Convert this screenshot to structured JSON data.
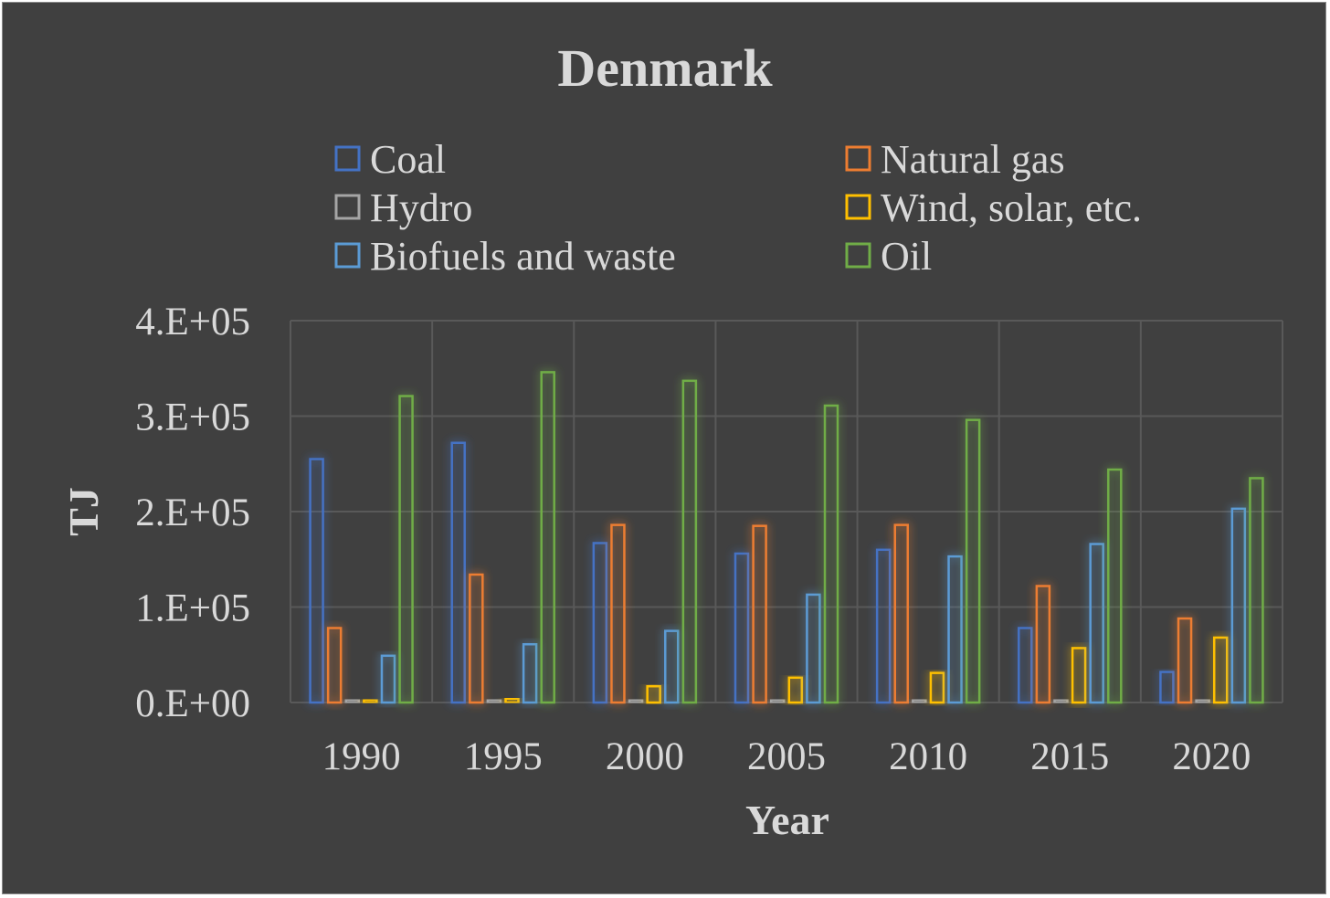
{
  "chart_data": {
    "type": "bar",
    "title": "Denmark",
    "xlabel": "Year",
    "ylabel": "TJ",
    "ylim": [
      0,
      400000
    ],
    "yticks": [
      "0.E+00",
      "1.E+05",
      "2.E+05",
      "3.E+05",
      "4.E+05"
    ],
    "categories": [
      "1990",
      "1995",
      "2000",
      "2005",
      "2010",
      "2015",
      "2020"
    ],
    "grid": true,
    "legend_position": "top",
    "series": [
      {
        "name": "Coal",
        "color": "#4472c4",
        "values": [
          255000,
          272000,
          167000,
          156000,
          160000,
          78000,
          32000
        ]
      },
      {
        "name": "Natural gas",
        "color": "#ed7d31",
        "values": [
          78000,
          134000,
          186000,
          185000,
          186000,
          122000,
          88000
        ]
      },
      {
        "name": "Hydro",
        "color": "#a5a5a5",
        "values": [
          100,
          100,
          100,
          100,
          100,
          100,
          100
        ]
      },
      {
        "name": "Wind, solar, etc.",
        "color": "#ffc000",
        "values": [
          2000,
          4000,
          17000,
          26000,
          31000,
          57000,
          68000
        ]
      },
      {
        "name": "Biofuels and waste",
        "color": "#5b9bd5",
        "values": [
          49000,
          61000,
          75000,
          113000,
          153000,
          166000,
          203000
        ]
      },
      {
        "name": "Oil",
        "color": "#70ad47",
        "values": [
          321000,
          346000,
          337000,
          311000,
          296000,
          244000,
          235000
        ]
      }
    ]
  }
}
